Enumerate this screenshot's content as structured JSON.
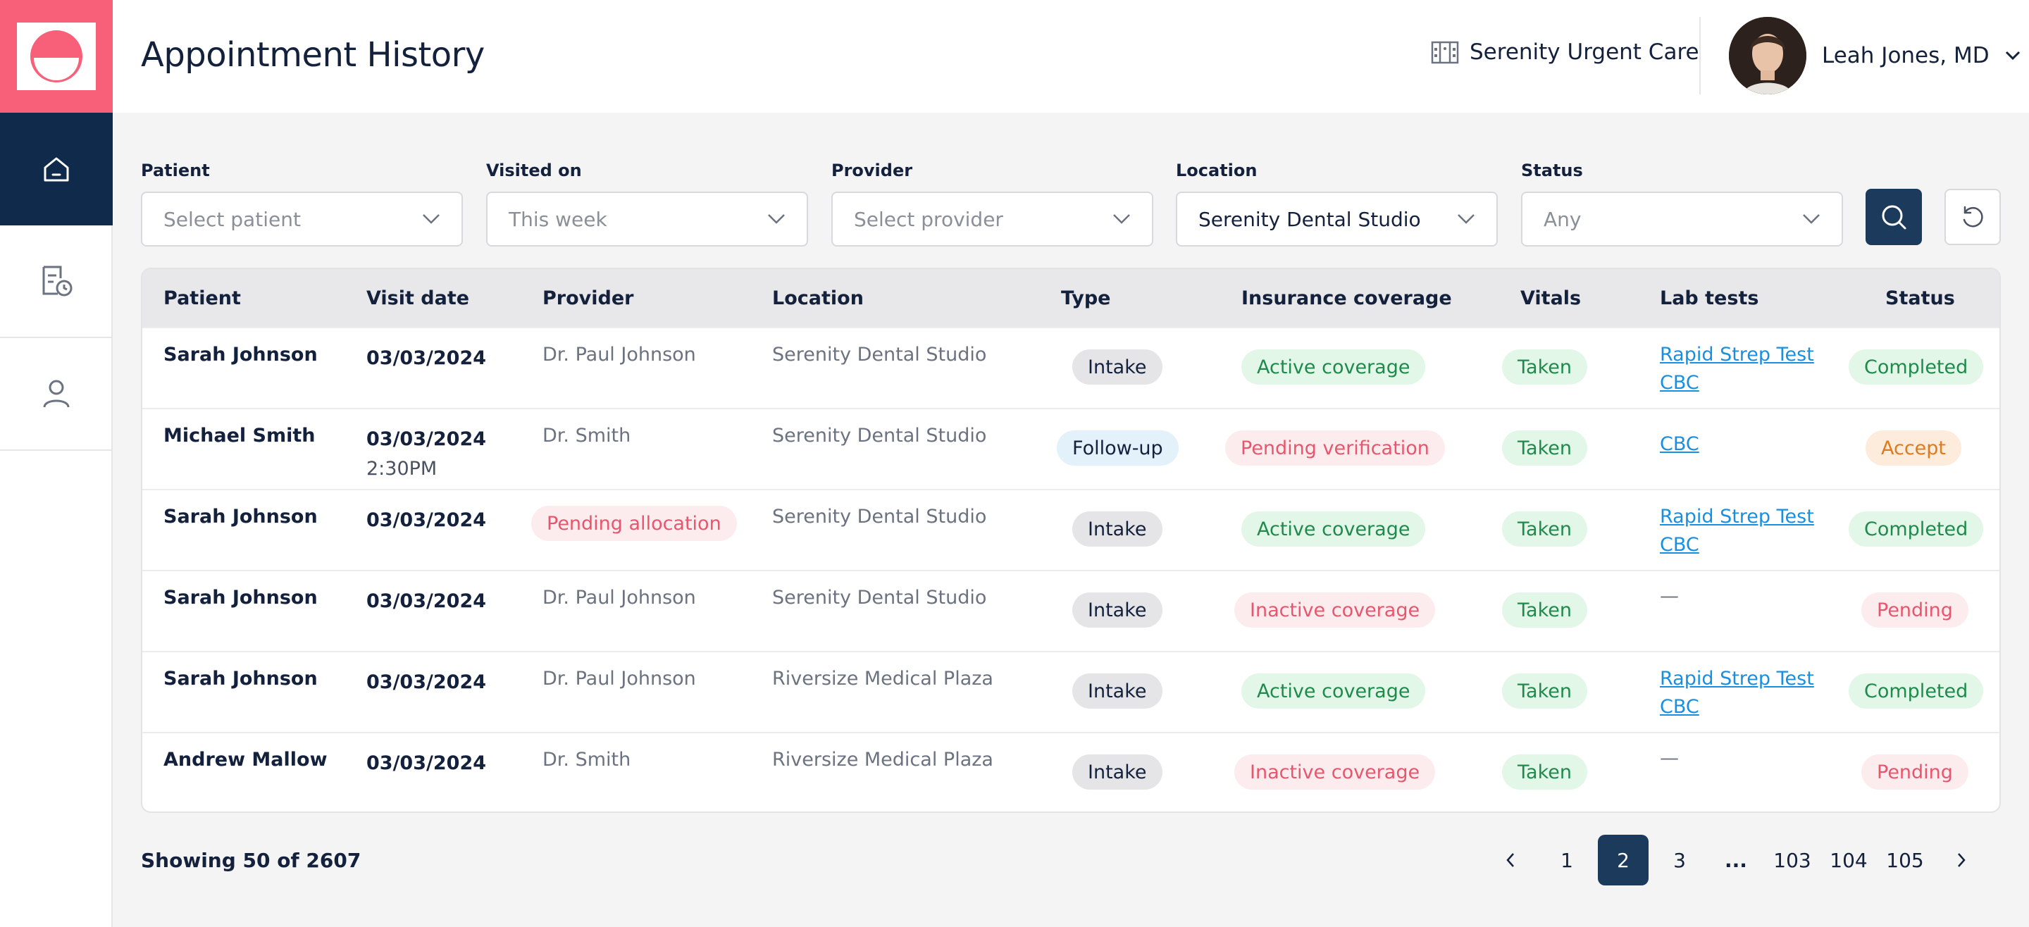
{
  "header": {
    "title": "Appointment History",
    "clinic": "Serenity Urgent Care",
    "user_name": "Leah Jones, MD"
  },
  "sidebar": {
    "items": [
      {
        "icon": "home-icon",
        "active": true
      },
      {
        "icon": "records-clock-icon",
        "active": false
      },
      {
        "icon": "user-icon",
        "active": false
      }
    ]
  },
  "filters": {
    "patient": {
      "label": "Patient",
      "placeholder": "Select patient"
    },
    "visited_on": {
      "label": "Visited on",
      "placeholder": "This week"
    },
    "provider": {
      "label": "Provider",
      "placeholder": "Select provider"
    },
    "location": {
      "label": "Location",
      "value": "Serenity Dental Studio"
    },
    "status": {
      "label": "Status",
      "placeholder": "Any"
    }
  },
  "table": {
    "columns": [
      "Patient",
      "Visit date",
      "Provider",
      "Location",
      "Type",
      "Insurance coverage",
      "Vitals",
      "Lab tests",
      "Status"
    ],
    "rows": [
      {
        "patient": "Sarah Johnson",
        "date": "03/03/2024",
        "time": "",
        "provider": "Dr. Paul Johnson",
        "location": "Serenity Dental Studio",
        "type": "Intake",
        "insurance": "Active coverage",
        "vitals": "Taken",
        "labs": [
          "Rapid Strep Test",
          "CBC"
        ],
        "status": "Completed"
      },
      {
        "patient": "Michael Smith",
        "date": "03/03/2024",
        "time": "2:30PM",
        "provider": "Dr. Smith",
        "location": "Serenity Dental Studio",
        "type": "Follow-up",
        "insurance": "Pending verification",
        "vitals": "Taken",
        "labs": [
          "CBC"
        ],
        "status": "Accept"
      },
      {
        "patient": "Sarah Johnson",
        "date": "03/03/2024",
        "time": "",
        "provider": "Pending allocation",
        "location": "Serenity Dental Studio",
        "type": "Intake",
        "insurance": "Active coverage",
        "vitals": "Taken",
        "labs": [
          "Rapid Strep Test",
          "CBC"
        ],
        "status": "Completed"
      },
      {
        "patient": "Sarah Johnson",
        "date": "03/03/2024",
        "time": "",
        "provider": "Dr. Paul Johnson",
        "location": "Serenity Dental Studio",
        "type": "Intake",
        "insurance": "Inactive coverage",
        "vitals": "Taken",
        "labs": [],
        "lab_empty": "—",
        "status": "Pending"
      },
      {
        "patient": "Sarah Johnson",
        "date": "03/03/2024",
        "time": "",
        "provider": "Dr. Paul Johnson",
        "location": "Riversize Medical Plaza",
        "type": "Intake",
        "insurance": "Active coverage",
        "vitals": "Taken",
        "labs": [
          "Rapid Strep Test",
          "CBC"
        ],
        "status": "Completed"
      },
      {
        "patient": "Andrew Mallow",
        "date": "03/03/2024",
        "time": "",
        "provider": "Dr. Smith",
        "location": "Riversize Medical Plaza",
        "type": "Intake",
        "insurance": "Inactive coverage",
        "vitals": "Taken",
        "labs": [],
        "lab_empty": "—",
        "status": "Pending"
      }
    ]
  },
  "footer": {
    "showing": "Showing 50 of 2607",
    "pages": [
      "1",
      "2",
      "3",
      "...",
      "103",
      "104",
      "105"
    ],
    "current_page": "2"
  },
  "colors": {
    "brand": "#f8607a",
    "navy": "#0f2a4a",
    "accent_button": "#1b3a5c",
    "link": "#1a8fe0"
  }
}
